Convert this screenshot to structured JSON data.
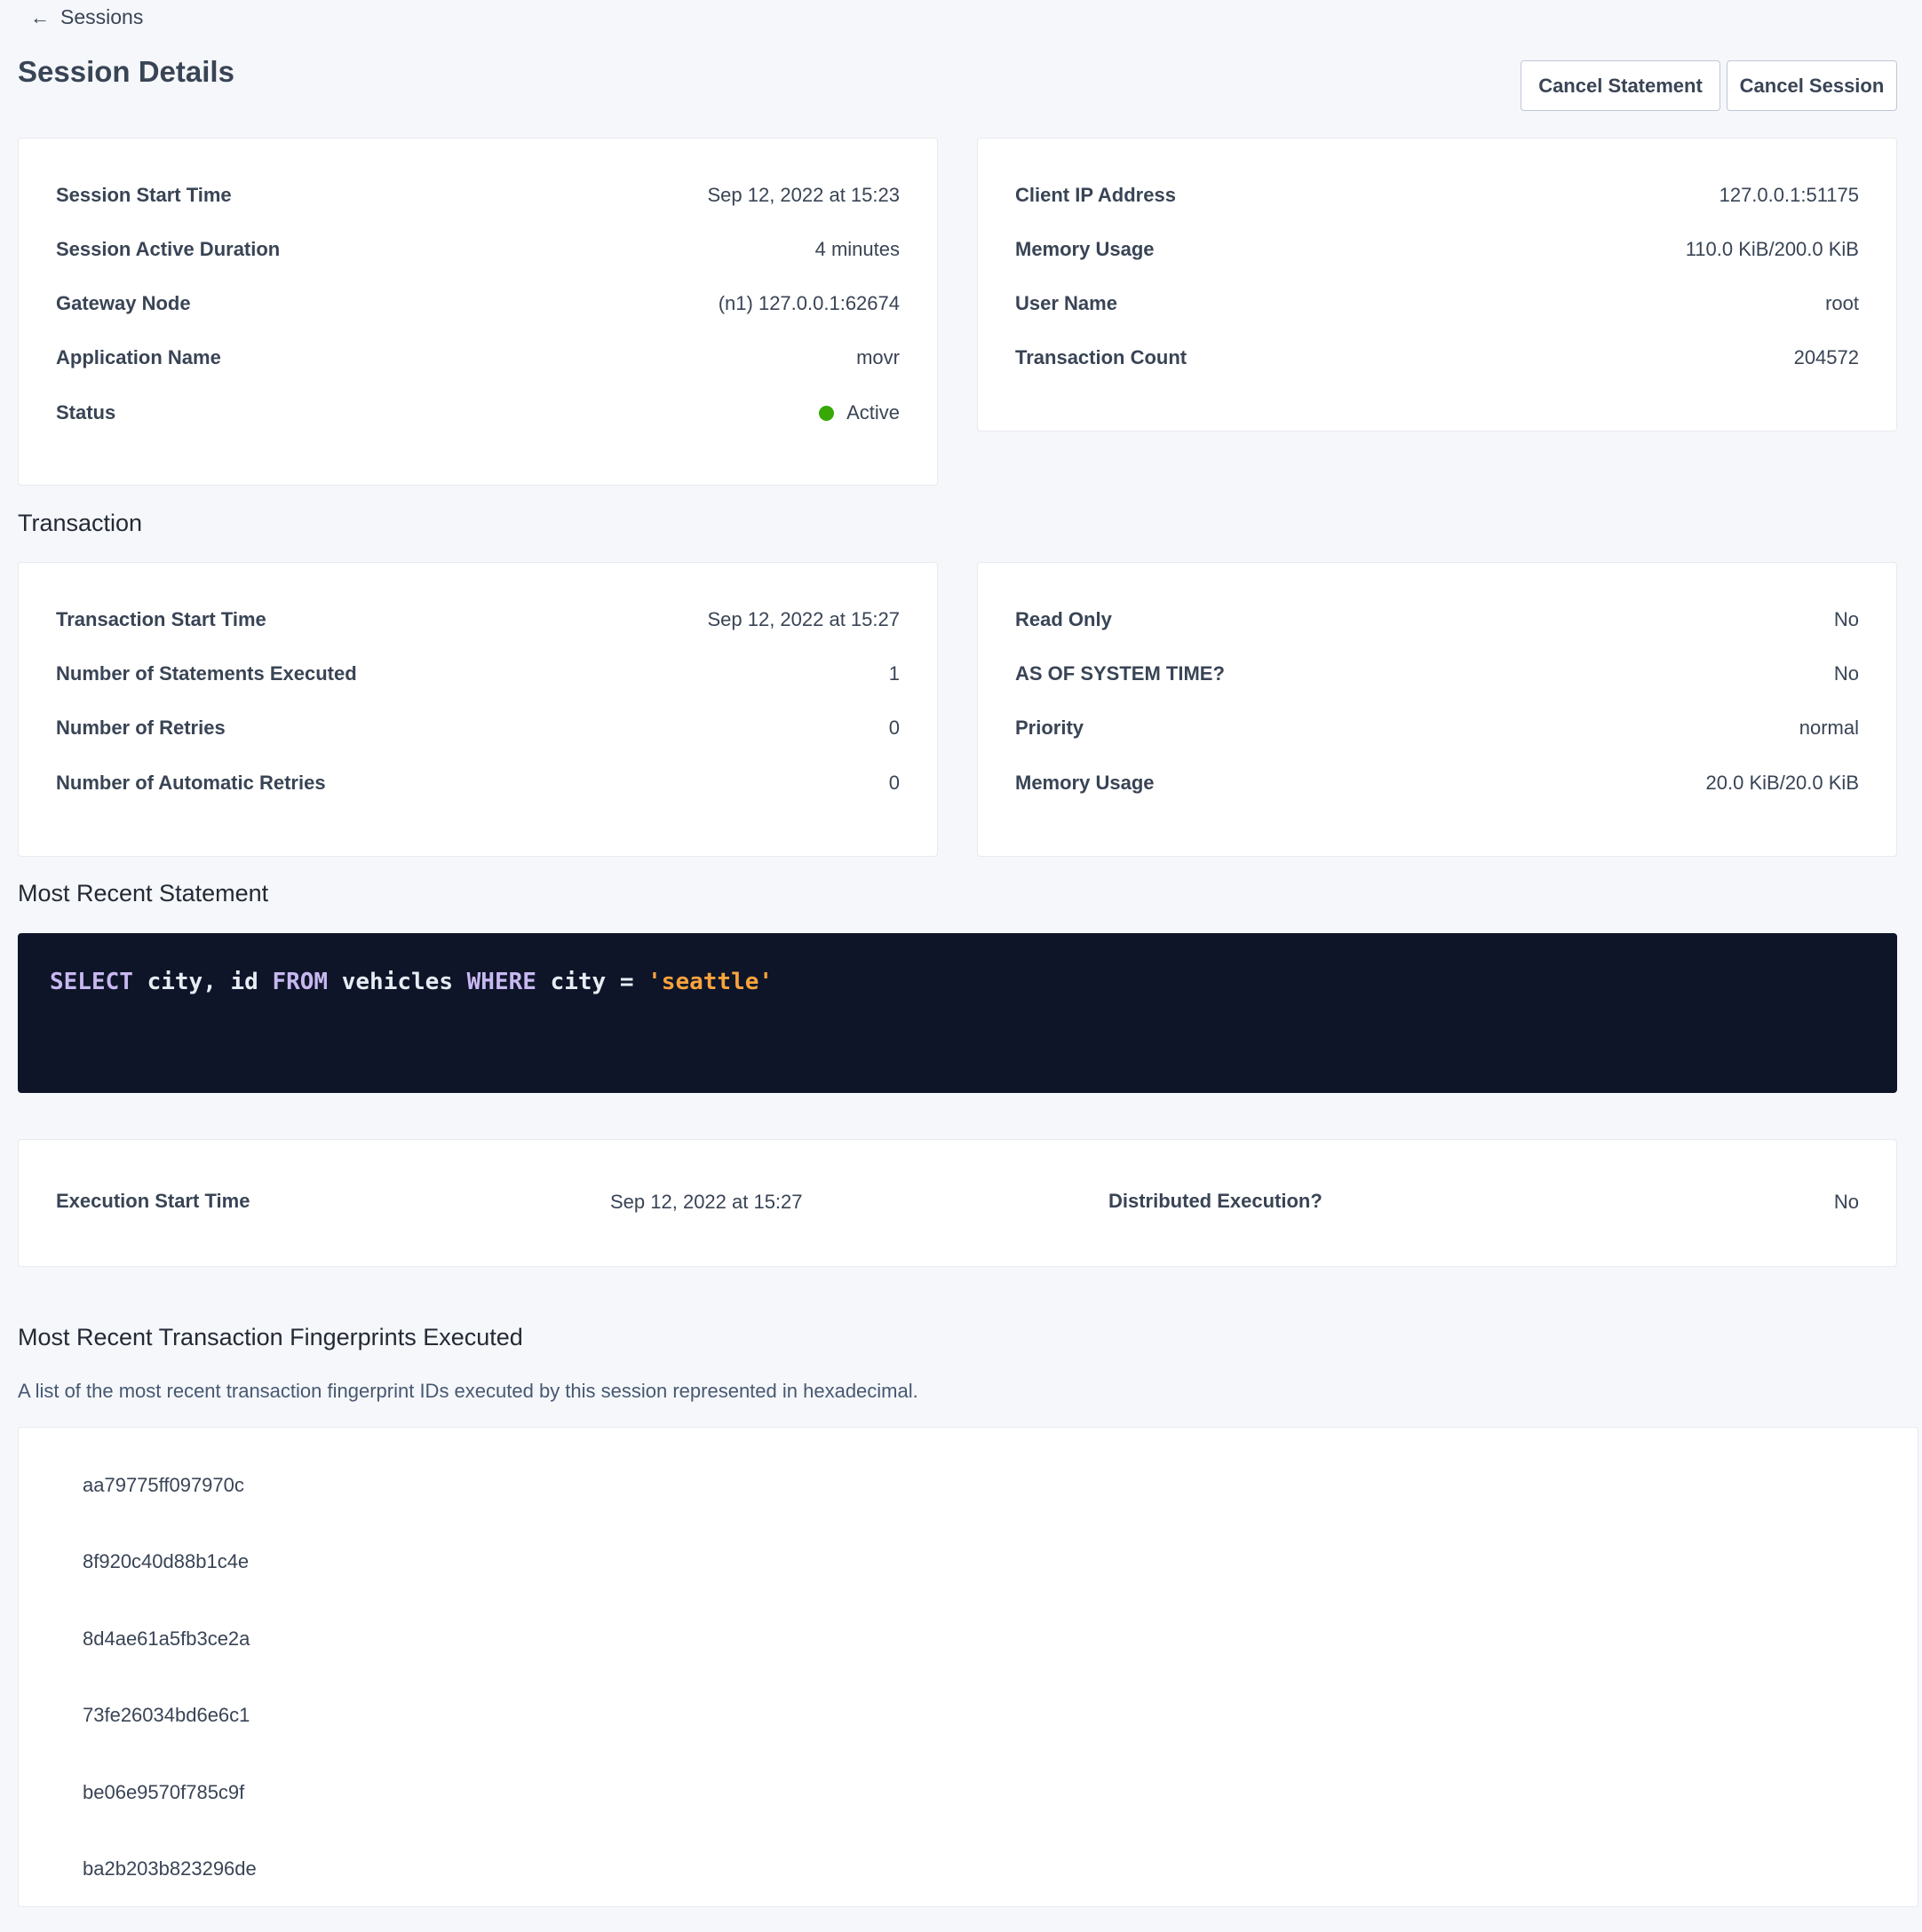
{
  "breadcrumb": {
    "label": "Sessions",
    "icon": "arrow-left-icon"
  },
  "page_title": "Session Details",
  "actions": {
    "cancel_statement": "Cancel Statement",
    "cancel_session": "Cancel Session"
  },
  "session_left": [
    {
      "label": "Session Start Time",
      "value": "Sep 12, 2022 at 15:23"
    },
    {
      "label": "Session Active Duration",
      "value": "4 minutes"
    },
    {
      "label": "Gateway Node",
      "value": "(n1) 127.0.0.1:62674"
    },
    {
      "label": "Application Name",
      "value": "movr"
    },
    {
      "label": "Status",
      "value": "Active",
      "status_color": "#37a806"
    }
  ],
  "session_right": [
    {
      "label": "Client IP Address",
      "value": "127.0.0.1:51175"
    },
    {
      "label": "Memory Usage",
      "value": "110.0 KiB/200.0 KiB"
    },
    {
      "label": "User Name",
      "value": "root"
    },
    {
      "label": "Transaction Count",
      "value": "204572"
    }
  ],
  "transaction": {
    "heading": "Transaction",
    "left": [
      {
        "label": "Transaction Start Time",
        "value": "Sep 12, 2022 at 15:27"
      },
      {
        "label": "Number of Statements Executed",
        "value": "1"
      },
      {
        "label": "Number of Retries",
        "value": "0"
      },
      {
        "label": "Number of Automatic Retries",
        "value": "0"
      }
    ],
    "right": [
      {
        "label": "Read Only",
        "value": "No"
      },
      {
        "label": "AS OF SYSTEM TIME?",
        "value": "No"
      },
      {
        "label": "Priority",
        "value": "normal"
      },
      {
        "label": "Memory Usage",
        "value": "20.0 KiB/20.0 KiB"
      }
    ]
  },
  "statement": {
    "heading": "Most Recent Statement",
    "tokens": [
      "SELECT",
      " city, id ",
      "FROM",
      " vehicles ",
      "WHERE",
      " city = ",
      "'seattle'"
    ],
    "execution_start_label": "Execution Start Time",
    "execution_start_value": "Sep 12, 2022 at 15:27",
    "distributed_label": "Distributed Execution?",
    "distributed_value": "No"
  },
  "fingerprints": {
    "heading": "Most Recent Transaction Fingerprints Executed",
    "description": "A list of the most recent transaction fingerprint IDs executed by this session represented in hexadecimal.",
    "items": [
      "aa79775ff097970c",
      "8f920c40d88b1c4e",
      "8d4ae61a5fb3ce2a",
      "73fe26034bd6e6c1",
      "be06e9570f785c9f",
      "ba2b203b823296de"
    ]
  }
}
